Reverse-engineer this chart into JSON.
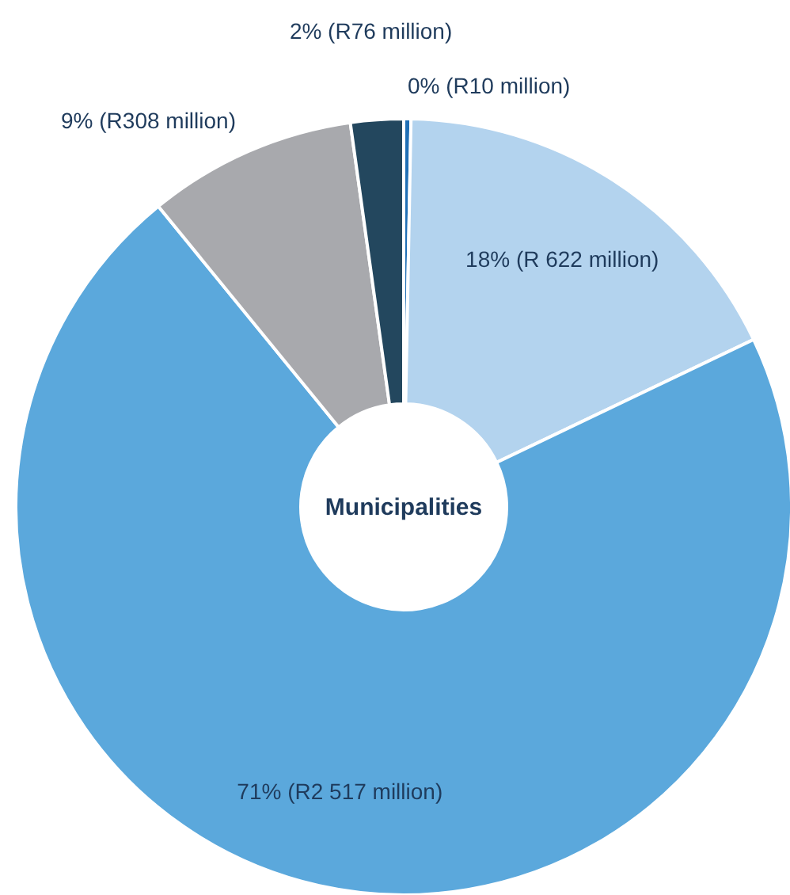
{
  "chart_data": {
    "type": "donut",
    "title": "Municipalities",
    "categories": [
      null,
      null,
      null,
      null,
      null
    ],
    "values": [
      0.3,
      17.6,
      71.2,
      8.7,
      2.2
    ],
    "value_labels": [
      "0% (R10 million)",
      "18% (R 622 million)",
      "71% (R2 517 million)",
      "9% (R308 million)",
      "2% (R76 million)"
    ],
    "colors": [
      "#1f6fb5",
      "#b3d3ee",
      "#5ba8dc",
      "#a8a9ad",
      "#23475e"
    ]
  }
}
